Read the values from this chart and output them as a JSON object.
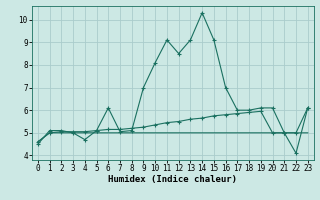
{
  "xlabel": "Humidex (Indice chaleur)",
  "ylabel": "",
  "bg_color": "#cce8e4",
  "grid_color": "#aacccc",
  "line_color": "#1a7060",
  "xlim": [
    -0.5,
    23.5
  ],
  "ylim": [
    3.8,
    10.6
  ],
  "yticks": [
    4,
    5,
    6,
    7,
    8,
    9,
    10
  ],
  "xticks": [
    0,
    1,
    2,
    3,
    4,
    5,
    6,
    7,
    8,
    9,
    10,
    11,
    12,
    13,
    14,
    15,
    16,
    17,
    18,
    19,
    20,
    21,
    22,
    23
  ],
  "line1_x": [
    0,
    1,
    2,
    3,
    4,
    5,
    6,
    7,
    8,
    9,
    10,
    11,
    12,
    13,
    14,
    15,
    16,
    17,
    18,
    19,
    20,
    21,
    22,
    23
  ],
  "line1_y": [
    4.5,
    5.1,
    5.1,
    5.0,
    4.7,
    5.1,
    6.1,
    5.05,
    5.1,
    7.0,
    8.1,
    9.1,
    8.5,
    9.1,
    10.3,
    9.1,
    7.0,
    6.0,
    6.0,
    6.1,
    6.1,
    5.0,
    4.1,
    6.1
  ],
  "line2_x": [
    0,
    1,
    2,
    3,
    4,
    5,
    6,
    7,
    8,
    9,
    10,
    11,
    12,
    13,
    14,
    15,
    16,
    17,
    18,
    19,
    20,
    21,
    22,
    23
  ],
  "line2_y": [
    4.6,
    5.0,
    5.05,
    5.05,
    5.05,
    5.1,
    5.15,
    5.15,
    5.2,
    5.25,
    5.35,
    5.45,
    5.5,
    5.6,
    5.65,
    5.75,
    5.8,
    5.85,
    5.9,
    5.95,
    5.0,
    5.0,
    5.0,
    6.1
  ],
  "line3_x": [
    0,
    1,
    2,
    3,
    4,
    5,
    6,
    7,
    8,
    9,
    10,
    11,
    12,
    13,
    14,
    15,
    16,
    17,
    18,
    19,
    20,
    21,
    22,
    23
  ],
  "line3_y": [
    4.6,
    5.0,
    5.0,
    5.0,
    5.0,
    5.0,
    5.0,
    5.0,
    5.0,
    5.0,
    5.0,
    5.0,
    5.0,
    5.0,
    5.0,
    5.0,
    5.0,
    5.0,
    5.0,
    5.0,
    5.0,
    5.0,
    5.0,
    5.0
  ]
}
